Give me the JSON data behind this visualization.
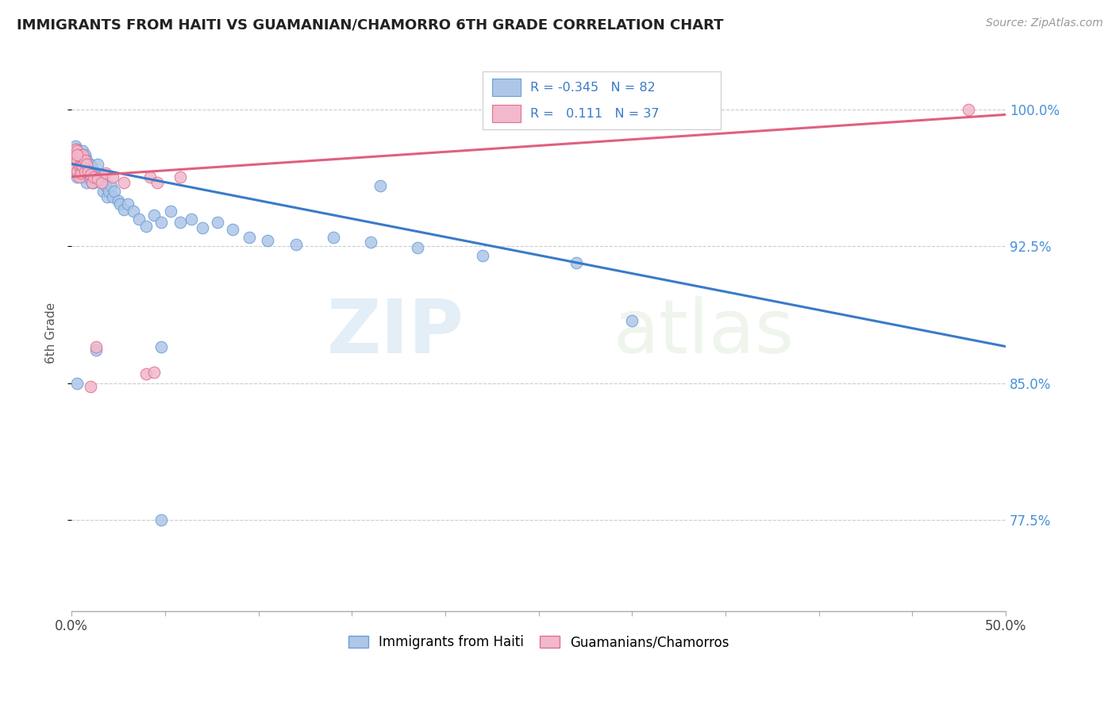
{
  "title": "IMMIGRANTS FROM HAITI VS GUAMANIAN/CHAMORRO 6TH GRADE CORRELATION CHART",
  "source": "Source: ZipAtlas.com",
  "ylabel": "6th Grade",
  "yticks": [
    0.775,
    0.85,
    0.925,
    1.0
  ],
  "ytick_labels": [
    "77.5%",
    "85.0%",
    "92.5%",
    "100.0%"
  ],
  "xlim": [
    0.0,
    0.5
  ],
  "ylim": [
    0.725,
    1.03
  ],
  "haiti_R": -0.345,
  "haiti_N": 82,
  "guam_R": 0.111,
  "guam_N": 37,
  "haiti_color": "#aec6e8",
  "haiti_edge": "#6a9fd8",
  "guam_color": "#f2b8cb",
  "guam_edge": "#e07090",
  "trend_haiti_color": "#3a7bc8",
  "trend_guam_color": "#e06080",
  "legend_label_haiti": "Immigrants from Haiti",
  "legend_label_guam": "Guamanians/Chamorros",
  "watermark_zip": "ZIP",
  "watermark_atlas": "atlas",
  "haiti_x": [
    0.001,
    0.001,
    0.001,
    0.002,
    0.002,
    0.002,
    0.002,
    0.003,
    0.003,
    0.003,
    0.003,
    0.003,
    0.004,
    0.004,
    0.004,
    0.004,
    0.004,
    0.005,
    0.005,
    0.005,
    0.005,
    0.006,
    0.006,
    0.006,
    0.006,
    0.007,
    0.007,
    0.007,
    0.007,
    0.008,
    0.008,
    0.008,
    0.009,
    0.009,
    0.01,
    0.01,
    0.01,
    0.011,
    0.011,
    0.012,
    0.012,
    0.013,
    0.014,
    0.014,
    0.015,
    0.016,
    0.017,
    0.018,
    0.019,
    0.02,
    0.021,
    0.022,
    0.023,
    0.025,
    0.026,
    0.028,
    0.03,
    0.033,
    0.036,
    0.04,
    0.044,
    0.048,
    0.053,
    0.058,
    0.064,
    0.07,
    0.078,
    0.086,
    0.095,
    0.105,
    0.12,
    0.14,
    0.16,
    0.185,
    0.22,
    0.27,
    0.003,
    0.013,
    0.048,
    0.3,
    0.048,
    0.165
  ],
  "haiti_y": [
    0.972,
    0.968,
    0.975,
    0.98,
    0.973,
    0.966,
    0.975,
    0.978,
    0.97,
    0.963,
    0.975,
    0.969,
    0.976,
    0.971,
    0.965,
    0.969,
    0.973,
    0.975,
    0.97,
    0.966,
    0.973,
    0.977,
    0.97,
    0.963,
    0.968,
    0.974,
    0.968,
    0.963,
    0.975,
    0.972,
    0.966,
    0.96,
    0.97,
    0.965,
    0.968,
    0.962,
    0.97,
    0.968,
    0.96,
    0.966,
    0.96,
    0.963,
    0.97,
    0.962,
    0.963,
    0.96,
    0.955,
    0.958,
    0.952,
    0.955,
    0.958,
    0.952,
    0.955,
    0.95,
    0.948,
    0.945,
    0.948,
    0.944,
    0.94,
    0.936,
    0.942,
    0.938,
    0.944,
    0.938,
    0.94,
    0.935,
    0.938,
    0.934,
    0.93,
    0.928,
    0.926,
    0.93,
    0.927,
    0.924,
    0.92,
    0.916,
    0.85,
    0.868,
    0.87,
    0.884,
    0.775,
    0.958
  ],
  "guam_x": [
    0.001,
    0.001,
    0.002,
    0.002,
    0.002,
    0.003,
    0.003,
    0.003,
    0.004,
    0.004,
    0.004,
    0.005,
    0.005,
    0.005,
    0.006,
    0.006,
    0.007,
    0.007,
    0.008,
    0.009,
    0.01,
    0.011,
    0.012,
    0.014,
    0.016,
    0.018,
    0.01,
    0.022,
    0.04,
    0.044,
    0.013,
    0.028,
    0.042,
    0.046,
    0.058,
    0.003,
    0.48
  ],
  "guam_y": [
    0.975,
    0.972,
    0.978,
    0.972,
    0.968,
    0.977,
    0.972,
    0.966,
    0.975,
    0.969,
    0.963,
    0.974,
    0.969,
    0.965,
    0.975,
    0.969,
    0.972,
    0.966,
    0.97,
    0.966,
    0.964,
    0.96,
    0.963,
    0.962,
    0.96,
    0.965,
    0.848,
    0.963,
    0.855,
    0.856,
    0.87,
    0.96,
    0.963,
    0.96,
    0.963,
    0.975,
    1.0
  ]
}
